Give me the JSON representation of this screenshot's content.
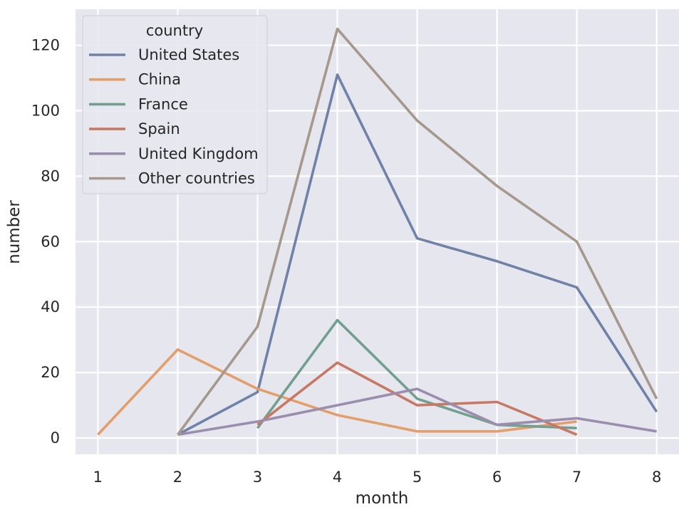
{
  "chart_data": {
    "type": "line",
    "title": "",
    "xlabel": "month",
    "ylabel": "number",
    "xlim": [
      0.72,
      8.28
    ],
    "ylim": [
      -5,
      131
    ],
    "xticks": [
      1,
      2,
      3,
      4,
      5,
      6,
      7,
      8
    ],
    "yticks": [
      0,
      20,
      40,
      60,
      80,
      100,
      120
    ],
    "grid": true,
    "legend": {
      "title": "country",
      "placement": "top-left"
    },
    "series": [
      {
        "name": "United States",
        "color": "#7082a8",
        "x": [
          2,
          3,
          4,
          5,
          6,
          7,
          8
        ],
        "y": [
          1,
          14,
          111,
          61,
          54,
          46,
          8
        ]
      },
      {
        "name": "China",
        "color": "#e39e6b",
        "x": [
          1,
          2,
          3,
          4,
          5,
          6,
          7
        ],
        "y": [
          1,
          27,
          15,
          7,
          2,
          2,
          5
        ]
      },
      {
        "name": "France",
        "color": "#739f8f",
        "x": [
          3,
          4,
          5,
          6,
          7
        ],
        "y": [
          3,
          36,
          12,
          4,
          3
        ]
      },
      {
        "name": "Spain",
        "color": "#c87966",
        "x": [
          3,
          4,
          5,
          6,
          7
        ],
        "y": [
          4,
          23,
          10,
          11,
          1
        ]
      },
      {
        "name": "United Kingdom",
        "color": "#9b8dae",
        "x": [
          2,
          3,
          4,
          5,
          6,
          7,
          8
        ],
        "y": [
          1,
          5,
          10,
          15,
          4,
          6,
          2
        ]
      },
      {
        "name": "Other countries",
        "color": "#a5988c",
        "x": [
          2,
          3,
          4,
          5,
          6,
          7,
          8
        ],
        "y": [
          1,
          34,
          125,
          97,
          77,
          60,
          12
        ]
      }
    ]
  },
  "colors": {
    "plot_background": "#e6e6ee",
    "grid": "#ffffff",
    "text": "#262626"
  }
}
